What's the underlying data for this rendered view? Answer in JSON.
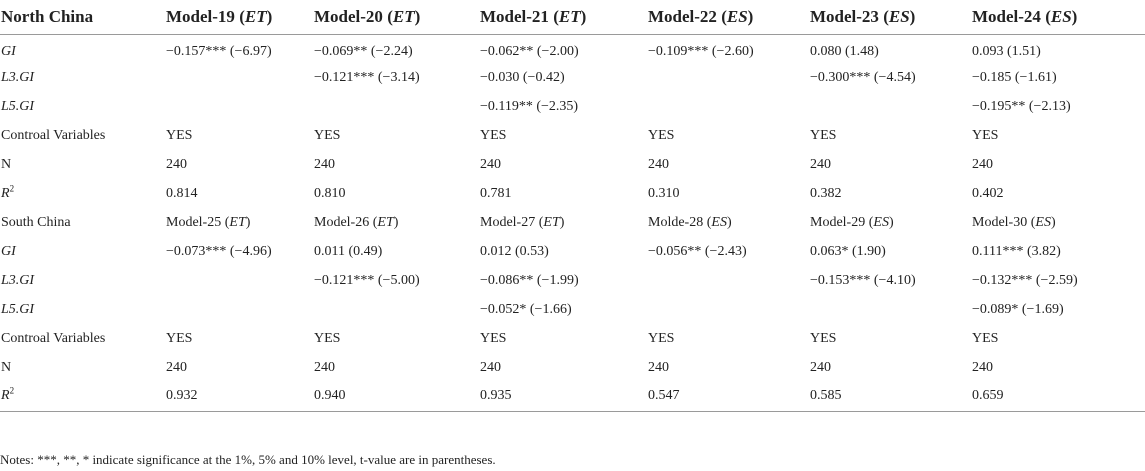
{
  "table": {
    "header": {
      "region": "North China",
      "models": [
        {
          "name": "Model-19",
          "var": "ET"
        },
        {
          "name": "Model-20",
          "var": "ET"
        },
        {
          "name": "Model-21",
          "var": "ET"
        },
        {
          "name": "Model-22",
          "var": "ES"
        },
        {
          "name": "Model-23",
          "var": "ES"
        },
        {
          "name": "Model-24",
          "var": "ES"
        }
      ]
    },
    "north_rows": {
      "gi": {
        "label": "GI",
        "cells": [
          "−0.157*** (−6.97)",
          "−0.069** (−2.24)",
          "−0.062** (−2.00)",
          "−0.109*** (−2.60)",
          "0.080 (1.48)",
          "0.093 (1.51)"
        ]
      },
      "l3gi": {
        "label": "L3.GI",
        "cells": [
          "",
          "−0.121*** (−3.14)",
          "−0.030 (−0.42)",
          "",
          "−0.300*** (−4.54)",
          "−0.185 (−1.61)"
        ]
      },
      "l5gi": {
        "label": "L5.GI",
        "cells": [
          "",
          "",
          "−0.119** (−2.35)",
          "",
          "",
          "−0.195** (−2.13)"
        ]
      },
      "controls": {
        "label": "Controal Variables",
        "cells": [
          "YES",
          "YES",
          "YES",
          "YES",
          "YES",
          "YES"
        ]
      },
      "n": {
        "label": "N",
        "cells": [
          "240",
          "240",
          "240",
          "240",
          "240",
          "240"
        ]
      },
      "r2": {
        "label_base": "R",
        "label_sup": "2",
        "cells": [
          "0.814",
          "0.810",
          "0.781",
          "0.310",
          "0.382",
          "0.402"
        ]
      }
    },
    "south_header": {
      "region": "South China",
      "models": [
        {
          "name": "Model-25",
          "var": "ET"
        },
        {
          "name": "Model-26",
          "var": "ET"
        },
        {
          "name": "Model-27",
          "var": "ET"
        },
        {
          "name": "Molde-28",
          "var": "ES"
        },
        {
          "name": "Model-29",
          "var": "ES"
        },
        {
          "name": "Model-30",
          "var": "ES"
        }
      ]
    },
    "south_rows": {
      "gi": {
        "label": "GI",
        "cells": [
          "−0.073*** (−4.96)",
          "0.011 (0.49)",
          "0.012 (0.53)",
          "−0.056** (−2.43)",
          "0.063* (1.90)",
          "0.111*** (3.82)"
        ]
      },
      "l3gi": {
        "label": "L3.GI",
        "cells": [
          "",
          "−0.121*** (−5.00)",
          "−0.086** (−1.99)",
          "",
          "−0.153*** (−4.10)",
          "−0.132*** (−2.59)"
        ]
      },
      "l5gi": {
        "label": "L5.GI",
        "cells": [
          "",
          "",
          "−0.052* (−1.66)",
          "",
          "",
          "−0.089* (−1.69)"
        ]
      },
      "controls": {
        "label": "Controal Variables",
        "cells": [
          "YES",
          "YES",
          "YES",
          "YES",
          "YES",
          "YES"
        ]
      },
      "n": {
        "label": "N",
        "cells": [
          "240",
          "240",
          "240",
          "240",
          "240",
          "240"
        ]
      },
      "r2": {
        "label_base": "R",
        "label_sup": "2",
        "cells": [
          "0.932",
          "0.940",
          "0.935",
          "0.547",
          "0.585",
          "0.659"
        ]
      }
    }
  },
  "notes": "Notes: ***, **, * indicate significance at the 1%, 5% and 10% level, t-value are in parentheses."
}
